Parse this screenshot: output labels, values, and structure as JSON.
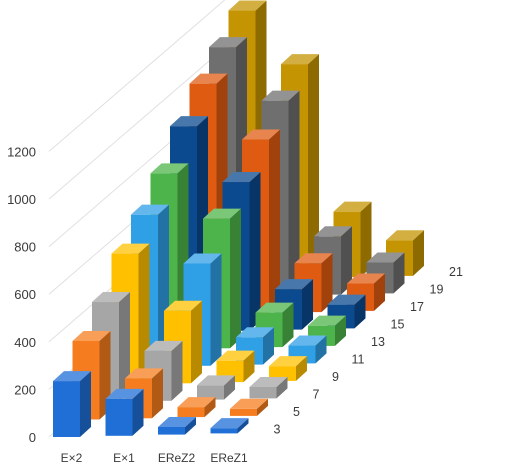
{
  "chart_data": {
    "type": "bar",
    "subtype": "3d-column",
    "title": "",
    "xlabel": "",
    "ylabel": "",
    "ylim": [
      0,
      1200
    ],
    "yticks": [
      0,
      200,
      400,
      600,
      800,
      1000,
      1200
    ],
    "grid": true,
    "legend": "none",
    "categories": [
      "E×2",
      "E×1",
      "EReZ2",
      "EReZ1"
    ],
    "series": [
      {
        "name": "3",
        "color": "#1f6fd6",
        "values": [
          235,
          155,
          32,
          22
        ]
      },
      {
        "name": "5",
        "color": "#f57d1f",
        "values": [
          330,
          168,
          42,
          30
        ]
      },
      {
        "name": "7",
        "color": "#a6a6a6",
        "values": [
          420,
          210,
          60,
          48
        ]
      },
      {
        "name": "9",
        "color": "#ffc000",
        "values": [
          550,
          305,
          90,
          62
        ]
      },
      {
        "name": "11",
        "color": "#2f9fe6",
        "values": [
          640,
          430,
          115,
          75
        ]
      },
      {
        "name": "13",
        "color": "#4cb44a",
        "values": [
          740,
          545,
          145,
          85
        ]
      },
      {
        "name": "15",
        "color": "#0b4a8f",
        "values": [
          865,
          625,
          170,
          100
        ]
      },
      {
        "name": "17",
        "color": "#e05b12",
        "values": [
          970,
          730,
          205,
          115
        ]
      },
      {
        "name": "19",
        "color": "#6f6f6f",
        "values": [
          1050,
          820,
          245,
          130
        ]
      },
      {
        "name": "21",
        "color": "#c49402",
        "values": [
          1130,
          900,
          275,
          150
        ]
      }
    ]
  }
}
